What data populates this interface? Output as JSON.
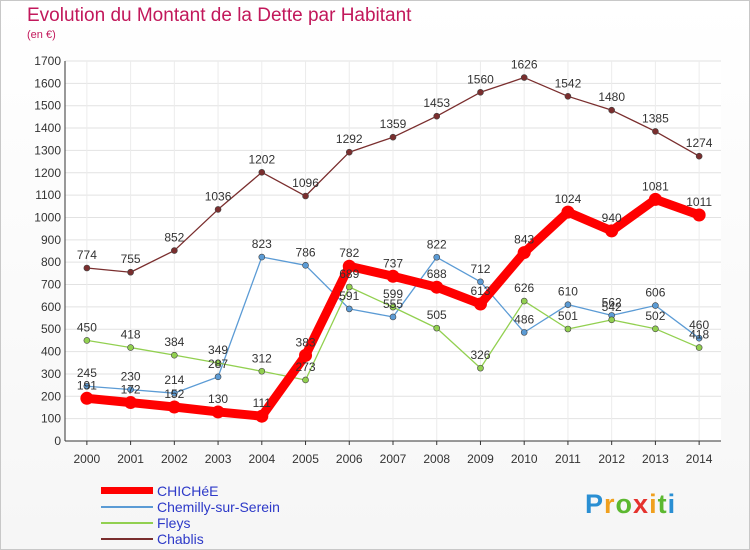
{
  "header": {
    "title": "Evolution du Montant de la Dette par Habitant",
    "unit": "(en €)"
  },
  "legend": [
    {
      "label": "CHICHéE",
      "color": "#ff0000"
    },
    {
      "label": "Chemilly-sur-Serein",
      "color": "#5b9bd5"
    },
    {
      "label": "Fleys",
      "color": "#92d050"
    },
    {
      "label": "Chablis",
      "color": "#7a2e2e"
    }
  ],
  "logo": {
    "text": "Proxiti"
  },
  "chart_data": {
    "type": "line",
    "title": "Evolution du Montant de la Dette par Habitant",
    "ylabel": "(en €)",
    "xlabel": "",
    "x": [
      "2000",
      "2001",
      "2002",
      "2003",
      "2004",
      "2005",
      "2006",
      "2007",
      "2008",
      "2009",
      "2010",
      "2011",
      "2012",
      "2013",
      "2014"
    ],
    "ylim": [
      0,
      1700
    ],
    "yticks": [
      0,
      100,
      200,
      300,
      400,
      500,
      600,
      700,
      800,
      900,
      1000,
      1100,
      1200,
      1300,
      1400,
      1500,
      1600,
      1700
    ],
    "grid": true,
    "legend_position": "bottom-left",
    "series": [
      {
        "name": "CHICHéE",
        "color": "#ff0000",
        "values": [
          191,
          172,
          152,
          130,
          111,
          383,
          782,
          737,
          688,
          613,
          843,
          1024,
          940,
          1081,
          1011
        ],
        "labels": [
          "191",
          "172",
          "152",
          "130",
          "111",
          "383",
          "782",
          "737",
          "688",
          "613",
          "843",
          "1024",
          "940",
          "1081",
          "1011"
        ]
      },
      {
        "name": "Chemilly-sur-Serein",
        "color": "#5b9bd5",
        "values": [
          245,
          230,
          214,
          287,
          823,
          786,
          591,
          555,
          822,
          712,
          486,
          610,
          562,
          606,
          460
        ],
        "labels": [
          "245",
          "230",
          "214",
          "287",
          "823",
          "786",
          "591",
          "555",
          "822",
          "712",
          "486",
          "610",
          "562",
          "606",
          "460"
        ]
      },
      {
        "name": "Fleys",
        "color": "#92d050",
        "values": [
          450,
          418,
          384,
          349,
          312,
          273,
          689,
          599,
          505,
          326,
          626,
          501,
          542,
          502,
          418
        ],
        "labels": [
          "450",
          "418",
          "384",
          "349",
          "312",
          "273",
          "689",
          "599",
          "505",
          "326",
          "626",
          "501",
          "542",
          "502",
          "418"
        ]
      },
      {
        "name": "Chablis",
        "color": "#7a2e2e",
        "values": [
          774,
          755,
          852,
          1036,
          1202,
          1096,
          1292,
          1359,
          1453,
          1560,
          1626,
          1542,
          1480,
          1385,
          1274
        ],
        "labels": [
          "774",
          "755",
          "852",
          "1036",
          "1202",
          "1096",
          "1292",
          "1359",
          "1453",
          "1560",
          "1626",
          "1542",
          "1480",
          "1385",
          "1274"
        ]
      }
    ]
  }
}
